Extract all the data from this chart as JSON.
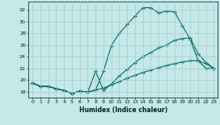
{
  "xlabel": "Humidex (Indice chaleur)",
  "background_color": "#c5e8e8",
  "grid_color": "#a8cccc",
  "line_color": "#006868",
  "xlim": [
    -0.5,
    23.5
  ],
  "ylim": [
    17.0,
    33.5
  ],
  "yticks": [
    18,
    20,
    22,
    24,
    26,
    28,
    30,
    32
  ],
  "xticks": [
    0,
    1,
    2,
    3,
    4,
    5,
    6,
    7,
    8,
    9,
    10,
    11,
    12,
    13,
    14,
    15,
    16,
    17,
    18,
    19,
    20,
    21,
    22,
    23
  ],
  "line1_x": [
    0,
    1,
    2,
    3,
    4,
    5,
    6,
    7,
    8,
    9,
    10,
    11,
    12,
    13,
    14,
    15,
    16,
    17,
    18,
    19,
    20,
    21,
    22,
    23
  ],
  "line1_y": [
    19.5,
    18.9,
    18.9,
    18.5,
    18.2,
    17.7,
    18.1,
    17.9,
    18.3,
    21.5,
    25.9,
    28.0,
    29.5,
    31.0,
    32.4,
    32.4,
    31.5,
    31.8,
    31.7,
    29.3,
    27.0,
    23.3,
    22.0,
    22.0
  ],
  "line2_x": [
    0,
    1,
    2,
    3,
    4,
    5,
    6,
    7,
    8,
    9,
    10,
    11,
    12,
    13,
    14,
    15,
    16,
    17,
    18,
    19,
    20,
    21,
    22,
    23
  ],
  "line2_y": [
    19.5,
    18.9,
    18.9,
    18.5,
    18.2,
    17.7,
    18.1,
    17.9,
    21.5,
    18.2,
    19.3,
    20.7,
    21.8,
    23.0,
    24.0,
    24.7,
    25.5,
    26.0,
    26.8,
    27.1,
    27.2,
    24.5,
    23.0,
    22.0
  ],
  "line3_x": [
    0,
    1,
    2,
    3,
    4,
    5,
    6,
    7,
    8,
    9,
    10,
    11,
    12,
    13,
    14,
    15,
    16,
    17,
    18,
    19,
    20,
    21,
    22,
    23
  ],
  "line3_y": [
    19.5,
    18.9,
    18.9,
    18.5,
    18.2,
    17.7,
    18.1,
    17.9,
    18.3,
    18.6,
    19.2,
    19.7,
    20.3,
    20.8,
    21.3,
    21.7,
    22.1,
    22.5,
    22.8,
    23.1,
    23.3,
    23.3,
    22.8,
    22.0
  ]
}
